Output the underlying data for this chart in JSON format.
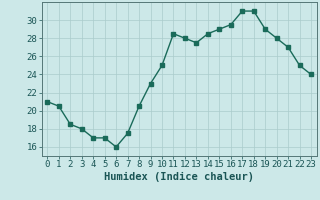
{
  "x": [
    0,
    1,
    2,
    3,
    4,
    5,
    6,
    7,
    8,
    9,
    10,
    11,
    12,
    13,
    14,
    15,
    16,
    17,
    18,
    19,
    20,
    21,
    22,
    23
  ],
  "y": [
    21,
    20.5,
    18.5,
    18,
    17,
    17,
    16,
    17.5,
    20.5,
    23,
    25,
    28.5,
    28,
    27.5,
    28.5,
    29,
    29.5,
    31,
    31,
    29,
    28,
    27,
    25,
    24
  ],
  "line_color": "#1a6b5a",
  "marker_color": "#1a6b5a",
  "bg_color": "#cce8e8",
  "grid_color": "#aacccc",
  "xlabel": "Humidex (Indice chaleur)",
  "ylim": [
    15,
    32
  ],
  "xlim": [
    -0.5,
    23.5
  ],
  "yticks": [
    16,
    18,
    20,
    22,
    24,
    26,
    28,
    30
  ],
  "xtick_labels": [
    "0",
    "1",
    "2",
    "3",
    "4",
    "5",
    "6",
    "7",
    "8",
    "9",
    "10",
    "11",
    "12",
    "13",
    "14",
    "15",
    "16",
    "17",
    "18",
    "19",
    "20",
    "21",
    "22",
    "23"
  ],
  "xlabel_fontsize": 7.5,
  "tick_fontsize": 6.5
}
